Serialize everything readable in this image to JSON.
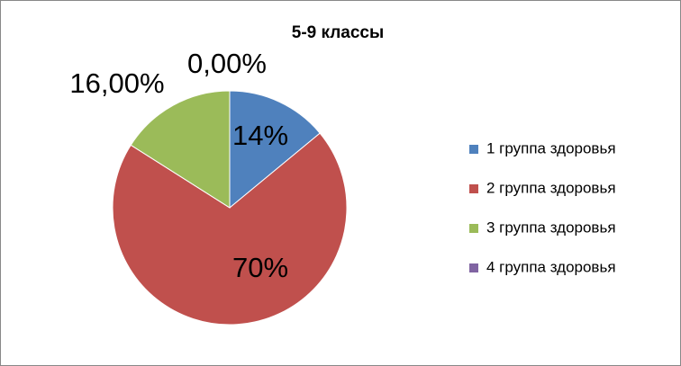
{
  "chart_data": {
    "type": "pie",
    "title": "5-9 классы",
    "categories": [
      "1 группа здоровья",
      "2 группа здоровья",
      "3 группа здоровья",
      "4 группа здоровья"
    ],
    "values": [
      14,
      70,
      16,
      0
    ],
    "value_labels": [
      "14%",
      "70%",
      "16,00%",
      "0,00%"
    ],
    "colors": [
      "#4f81bd",
      "#c0504d",
      "#9bbb59",
      "#8064a2"
    ],
    "legend": "right"
  }
}
